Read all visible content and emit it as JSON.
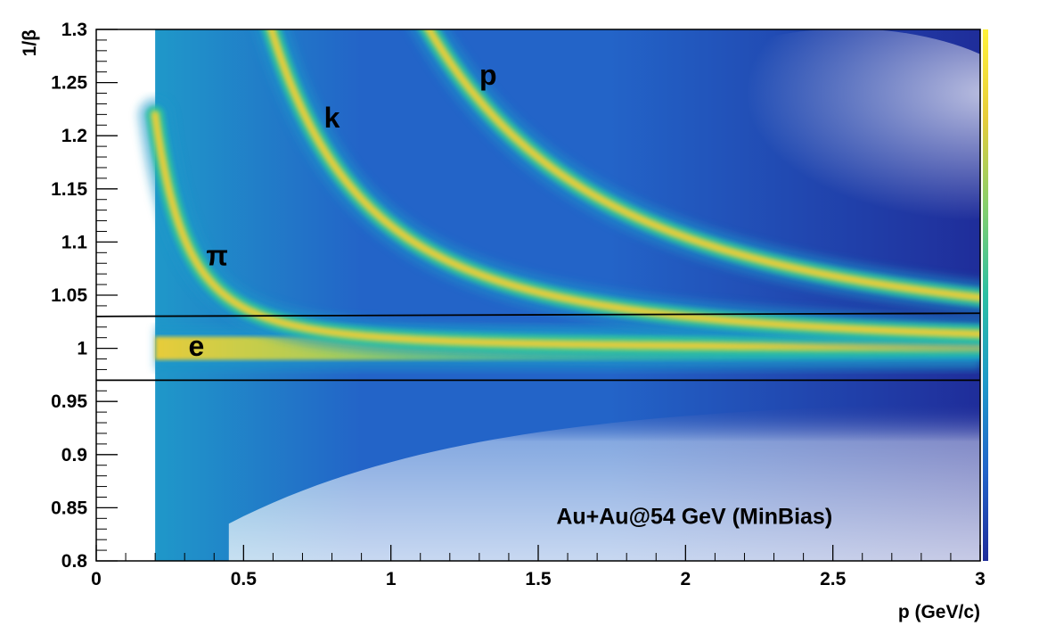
{
  "chart_data": {
    "type": "heatmap",
    "title": "",
    "xlabel": "p (GeV/c)",
    "ylabel": "1/β",
    "xlim": [
      0,
      3
    ],
    "ylim": [
      0.8,
      1.3
    ],
    "x_ticks": [
      "0",
      "0.5",
      "1",
      "1.5",
      "2",
      "2.5",
      "3"
    ],
    "y_ticks": [
      "0.8",
      "0.85",
      "0.9",
      "0.95",
      "1",
      "1.05",
      "1.1",
      "1.15",
      "1.2",
      "1.25",
      "1.3"
    ],
    "colorscale": [
      "#1f2d9a",
      "#2364c8",
      "#1f98c9",
      "#2cbfa3",
      "#86cf6c",
      "#e7cc3a",
      "#fff23a"
    ],
    "data_x_range": [
      0.2,
      3.0
    ],
    "bands": [
      {
        "particle": "e",
        "mass_gev": 0.000511
      },
      {
        "particle": "π",
        "mass_gev": 0.1396
      },
      {
        "particle": "k",
        "mass_gev": 0.4937
      },
      {
        "particle": "p",
        "mass_gev": 0.9383
      }
    ],
    "cut_lines": [
      {
        "x": [
          0.0,
          3.0
        ],
        "y": [
          1.03,
          1.033
        ]
      },
      {
        "x": [
          0.0,
          3.0
        ],
        "y": [
          0.97,
          0.97
        ]
      }
    ],
    "particle_labels": [
      {
        "text": "π",
        "x": 0.41,
        "y": 1.085
      },
      {
        "text": "k",
        "x": 0.8,
        "y": 1.215
      },
      {
        "text": "p",
        "x": 1.33,
        "y": 1.255
      },
      {
        "text": "e",
        "x": 0.34,
        "y": 1.0
      }
    ],
    "annotation": {
      "text": "Au+Au@54 GeV (MinBias)",
      "x": 2.03,
      "y": 0.835
    }
  }
}
